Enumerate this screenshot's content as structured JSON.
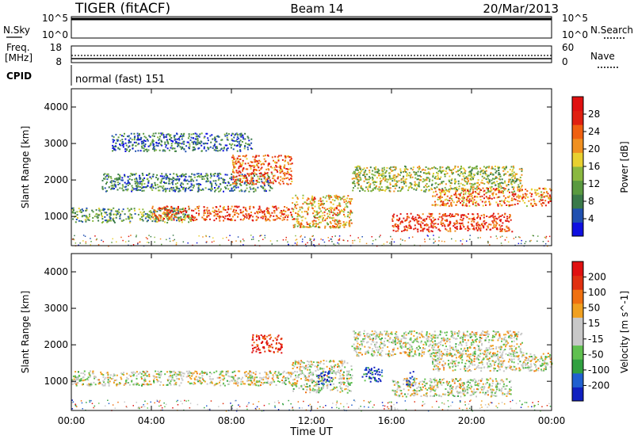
{
  "header": {
    "station": "TIGER (fitACF)",
    "beam": "Beam 14",
    "date": "20/Mar/2013"
  },
  "nsky_panel": {
    "left_label": "N.Sky",
    "right_label": "N.Search",
    "ticks": [
      "10^5",
      "10^0"
    ],
    "right_ticks": [
      "10^5",
      "10^0"
    ]
  },
  "freq_panel": {
    "left_label_line1": "Freq.",
    "left_label_line2": "[MHz]",
    "right_label": "Nave",
    "left_ticks": [
      "18",
      "8"
    ],
    "right_ticks": [
      "60",
      "0"
    ]
  },
  "cpid_panel": {
    "label": "CPID",
    "text": "normal (fast) 151"
  },
  "time_axis": {
    "ticks": [
      "00:00",
      "04:00",
      "08:00",
      "12:00",
      "16:00",
      "20:00",
      "00:00"
    ],
    "label": "Time UT"
  },
  "chart_data": [
    {
      "type": "heatmap",
      "title": "",
      "ylabel": "Slant Range [km]",
      "xlabel": "Time UT",
      "ylim": [
        200,
        4500
      ],
      "y_ticks": [
        "1000",
        "2000",
        "3000",
        "4000"
      ],
      "x_hours": [
        0,
        24
      ],
      "colorbar": {
        "label": "Power [dB]",
        "ticks": [
          "28",
          "24",
          "20",
          "16",
          "12",
          "8",
          "4"
        ],
        "colors": [
          "#1010e0",
          "#2050b0",
          "#3a7a4a",
          "#5a9a40",
          "#8ab840",
          "#e8d030",
          "#f09020",
          "#f06010",
          "#e02010",
          "#e01010"
        ]
      },
      "bands": [
        {
          "t0": 0.0,
          "t1": 6.0,
          "r0": 850,
          "r1": 1250,
          "level": 0.35
        },
        {
          "t0": 4.0,
          "t1": 11.0,
          "r0": 900,
          "r1": 1300,
          "level": 0.8
        },
        {
          "t0": 11.0,
          "t1": 14.0,
          "r0": 700,
          "r1": 1600,
          "level": 0.6
        },
        {
          "t0": 14.0,
          "t1": 22.5,
          "r0": 1700,
          "r1": 2400,
          "level": 0.45
        },
        {
          "t0": 18.0,
          "t1": 24.0,
          "r0": 1300,
          "r1": 1800,
          "level": 0.7
        },
        {
          "t0": 1.5,
          "t1": 10.0,
          "r0": 1700,
          "r1": 2200,
          "level": 0.25
        },
        {
          "t0": 8.0,
          "t1": 11.0,
          "r0": 1900,
          "r1": 2700,
          "level": 0.75
        },
        {
          "t0": 2.0,
          "t1": 9.0,
          "r0": 2800,
          "r1": 3300,
          "level": 0.2
        },
        {
          "t0": 16.0,
          "t1": 22.0,
          "r0": 600,
          "r1": 1100,
          "level": 0.85
        }
      ]
    },
    {
      "type": "heatmap",
      "title": "",
      "ylabel": "Slant Range [km]",
      "xlabel": "Time UT",
      "ylim": [
        200,
        4500
      ],
      "y_ticks": [
        "1000",
        "2000",
        "3000",
        "4000"
      ],
      "x_hours": [
        0,
        24
      ],
      "colorbar": {
        "label": "Velocity [m s^-1]",
        "ticks": [
          "200",
          "100",
          "50",
          "15",
          "-15",
          "-50",
          "-100",
          "-200"
        ],
        "colors": [
          "#1020c0",
          "#2060d0",
          "#30a040",
          "#60c050",
          "#c8c8c8",
          "#c8c8c8",
          "#f0a020",
          "#f07010",
          "#e03010",
          "#e01010"
        ]
      },
      "bands": [
        {
          "t0": 0.0,
          "t1": 11.0,
          "r0": 900,
          "r1": 1300,
          "level": 0.5
        },
        {
          "t0": 11.0,
          "t1": 14.0,
          "r0": 700,
          "r1": 1600,
          "level": 0.5
        },
        {
          "t0": 14.0,
          "t1": 22.5,
          "r0": 1700,
          "r1": 2400,
          "level": 0.5
        },
        {
          "t0": 18.0,
          "t1": 24.0,
          "r0": 1300,
          "r1": 1800,
          "level": 0.5
        },
        {
          "t0": 9.0,
          "t1": 10.5,
          "r0": 1800,
          "r1": 2300,
          "level": 0.95
        },
        {
          "t0": 12.3,
          "t1": 13.0,
          "r0": 900,
          "r1": 1300,
          "level": 0.1
        },
        {
          "t0": 14.5,
          "t1": 15.5,
          "r0": 1000,
          "r1": 1400,
          "level": 0.1
        },
        {
          "t0": 16.7,
          "t1": 17.1,
          "r0": 900,
          "r1": 1300,
          "level": 0.05
        },
        {
          "t0": 16.0,
          "t1": 22.0,
          "r0": 600,
          "r1": 1100,
          "level": 0.5
        }
      ]
    }
  ]
}
